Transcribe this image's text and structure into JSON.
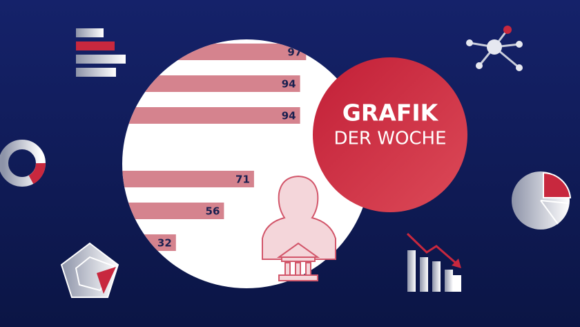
{
  "bars": {
    "values": [
      97,
      94,
      94,
      71,
      56,
      32
    ]
  },
  "badge": {
    "line1": "GRAFIK",
    "line2": "DER WOCHE"
  }
}
